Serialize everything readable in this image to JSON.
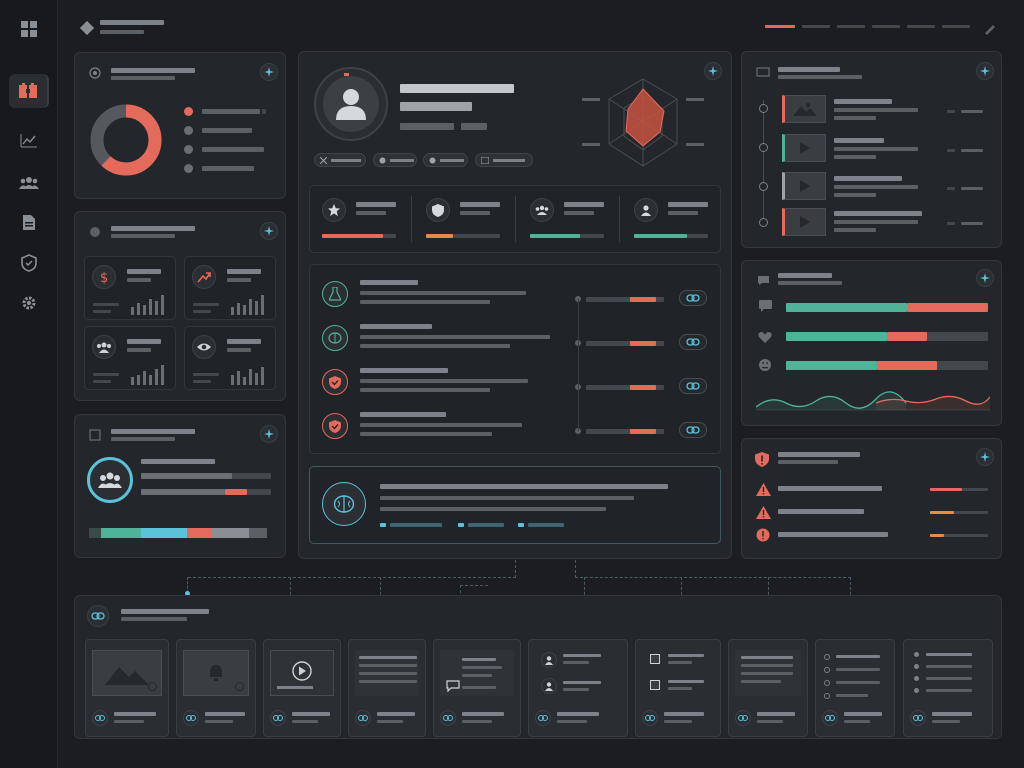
{
  "colors": {
    "accent_red": "#e46a5c",
    "accent_teal": "#4fb39a",
    "accent_cyan": "#5bc3d9",
    "accent_orange": "#e58a4a",
    "bar_gray": "#5b5f66"
  },
  "sidebar": {
    "items": [
      {
        "icon": "grid-icon"
      },
      {
        "icon": "puzzle-icon",
        "active": true
      },
      {
        "icon": "chart-icon"
      },
      {
        "icon": "users-icon"
      },
      {
        "icon": "document-icon"
      },
      {
        "icon": "shield-icon"
      },
      {
        "icon": "gear-icon"
      }
    ]
  },
  "donut": {
    "fraction": 0.62
  },
  "progress": {
    "stats": [
      0.82,
      0.36,
      0.68,
      0.71
    ],
    "sentiment": [
      {
        "teal": 0.6,
        "red": 0.4
      },
      {
        "teal": 0.5,
        "red": 0.2
      },
      {
        "teal": 0.45,
        "red": 0.3
      }
    ],
    "team_bars": [
      0.7,
      0.6
    ]
  }
}
